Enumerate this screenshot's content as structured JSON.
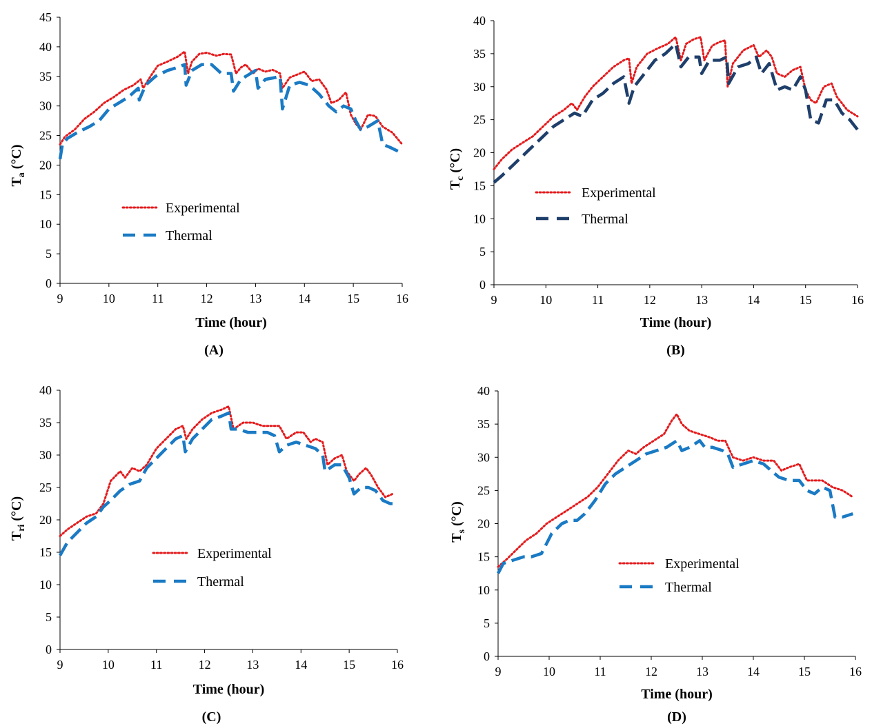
{
  "chart_data": [
    {
      "type": "line",
      "panel_label": "(A)",
      "xlabel": "Time (hour)",
      "ylabel": {
        "main": "T",
        "sub": "a",
        "unit": " (°C)"
      },
      "xlim": [
        9,
        16
      ],
      "ylim": [
        0,
        45
      ],
      "xticks": [
        9,
        10,
        11,
        12,
        13,
        14,
        15,
        16
      ],
      "yticks": [
        0,
        5,
        10,
        15,
        20,
        25,
        30,
        35,
        40,
        45
      ],
      "grid": false,
      "legend_position": "center-left",
      "series": [
        {
          "name": "Experimental",
          "color": "#e31a1c",
          "style": "dotted",
          "x": [
            9,
            9.1,
            9.3,
            9.5,
            9.7,
            9.9,
            10.1,
            10.3,
            10.5,
            10.65,
            10.7,
            10.85,
            11,
            11.2,
            11.4,
            11.55,
            11.62,
            11.7,
            11.85,
            12,
            12.2,
            12.35,
            12.5,
            12.6,
            12.7,
            12.8,
            12.95,
            13.05,
            13.2,
            13.35,
            13.5,
            13.55,
            13.7,
            13.85,
            14,
            14.15,
            14.3,
            14.45,
            14.55,
            14.7,
            14.85,
            14.95,
            15.05,
            15.15,
            15.3,
            15.45,
            15.6,
            15.8,
            16
          ],
          "y": [
            23.5,
            24.8,
            26,
            27.8,
            29,
            30.5,
            31.5,
            32.7,
            33.5,
            34.5,
            33,
            35,
            36.8,
            37.5,
            38.3,
            39.2,
            35.5,
            37.5,
            38.8,
            39,
            38.5,
            38.8,
            38.7,
            35.5,
            36.5,
            37,
            35.5,
            36.3,
            35.8,
            36.1,
            35.5,
            33,
            34.8,
            35.3,
            35.8,
            34.2,
            34.5,
            32.8,
            30.5,
            31,
            32.3,
            28.5,
            27,
            26,
            28.5,
            28.3,
            26.5,
            25.5,
            23.5
          ]
        },
        {
          "name": "Thermal",
          "color": "#1a7ac4",
          "style": "dashed",
          "x": [
            9,
            9.05,
            9.15,
            9.35,
            9.6,
            9.8,
            10,
            10.2,
            10.4,
            10.6,
            10.62,
            10.75,
            10.95,
            11.2,
            11.4,
            11.55,
            11.58,
            11.7,
            11.9,
            12.1,
            12.3,
            12.5,
            12.55,
            12.7,
            12.9,
            13.0,
            13.05,
            13.2,
            13.4,
            13.5,
            13.55,
            13.7,
            13.9,
            14.1,
            14.3,
            14.5,
            14.65,
            14.8,
            14.95,
            15.05,
            15.15,
            15.3,
            15.5,
            15.6,
            15.75,
            16
          ],
          "y": [
            21,
            23.5,
            24.5,
            25.5,
            26.5,
            27.5,
            29.5,
            30.5,
            31.5,
            33,
            31,
            33.5,
            35,
            36,
            36.5,
            37,
            33.5,
            36,
            37,
            37,
            35.5,
            35.5,
            32.5,
            34.5,
            35.5,
            36,
            33,
            34.5,
            34.8,
            35,
            29.5,
            33.5,
            34,
            33.5,
            32,
            30,
            29,
            30,
            29.5,
            27.5,
            26,
            26.5,
            27.5,
            23.5,
            23,
            22
          ]
        }
      ]
    },
    {
      "type": "line",
      "panel_label": "(B)",
      "xlabel": "Time (hour)",
      "ylabel": {
        "main": "T",
        "sub": "c",
        "unit": " (°C)"
      },
      "xlim": [
        9,
        16
      ],
      "ylim": [
        0,
        40
      ],
      "xticks": [
        9,
        10,
        11,
        12,
        13,
        14,
        15,
        16
      ],
      "yticks": [
        0,
        5,
        10,
        15,
        20,
        25,
        30,
        35,
        40
      ],
      "grid": false,
      "legend_position": "center-left",
      "series": [
        {
          "name": "Experimental",
          "color": "#e31a1c",
          "style": "dotted",
          "x": [
            9,
            9.15,
            9.35,
            9.55,
            9.75,
            9.95,
            10.15,
            10.35,
            10.5,
            10.6,
            10.75,
            10.9,
            11.1,
            11.3,
            11.5,
            11.6,
            11.65,
            11.75,
            11.95,
            12.15,
            12.35,
            12.5,
            12.6,
            12.7,
            12.85,
            12.98,
            13.05,
            13.2,
            13.35,
            13.45,
            13.5,
            13.6,
            13.8,
            14,
            14.1,
            14.25,
            14.35,
            14.45,
            14.6,
            14.75,
            14.9,
            15,
            15.1,
            15.2,
            15.35,
            15.5,
            15.6,
            15.8,
            16
          ],
          "y": [
            17.5,
            19,
            20.5,
            21.5,
            22.5,
            24,
            25.5,
            26.5,
            27.5,
            26.5,
            28.5,
            30,
            31.5,
            33,
            34,
            34.3,
            30.5,
            33,
            35,
            35.8,
            36.5,
            37.5,
            34,
            36.5,
            37.2,
            37.5,
            34,
            36.2,
            36.8,
            37,
            30,
            33.5,
            35.5,
            36.3,
            34.5,
            35.5,
            34.5,
            32,
            31.5,
            32.5,
            33,
            29.5,
            28,
            27.5,
            30,
            30.5,
            28.5,
            26.5,
            25.5
          ]
        },
        {
          "name": "Thermal",
          "color": "#1f3f6b",
          "style": "dashed",
          "x": [
            9,
            9.15,
            9.35,
            9.55,
            9.75,
            9.95,
            10.15,
            10.35,
            10.55,
            10.7,
            10.9,
            11.1,
            11.3,
            11.5,
            11.6,
            11.7,
            11.9,
            12.1,
            12.3,
            12.5,
            12.6,
            12.75,
            12.95,
            13.0,
            13.15,
            13.35,
            13.48,
            13.52,
            13.7,
            13.9,
            14.05,
            14.15,
            14.3,
            14.45,
            14.6,
            14.75,
            14.9,
            15.0,
            15.1,
            15.25,
            15.4,
            15.55,
            15.7,
            15.85,
            16
          ],
          "y": [
            15.5,
            16.5,
            18,
            19.5,
            21,
            22.5,
            24,
            25,
            26,
            25.5,
            28,
            29,
            30.5,
            31.5,
            27.5,
            30,
            32,
            34,
            35,
            36.5,
            33,
            34.5,
            34.5,
            32,
            34,
            34,
            34.5,
            30.5,
            33,
            33.5,
            34.5,
            32,
            33.5,
            29.5,
            30,
            29.5,
            31.5,
            29.5,
            25,
            24.5,
            28,
            28,
            26,
            25,
            23.5
          ]
        }
      ]
    },
    {
      "type": "line",
      "panel_label": "(C)",
      "xlabel": "Time (hour)",
      "ylabel": {
        "main": "T",
        "sub": "ri",
        "unit": " (°C)"
      },
      "xlim": [
        9,
        16
      ],
      "ylim": [
        0,
        40
      ],
      "xticks": [
        9,
        10,
        11,
        12,
        13,
        14,
        15,
        16
      ],
      "yticks": [
        0,
        5,
        10,
        15,
        20,
        25,
        30,
        35,
        40
      ],
      "grid": false,
      "legend_position": "center-left",
      "series": [
        {
          "name": "Experimental",
          "color": "#e31a1c",
          "style": "dotted",
          "x": [
            9,
            9.15,
            9.35,
            9.55,
            9.75,
            9.9,
            10.05,
            10.25,
            10.35,
            10.5,
            10.65,
            10.8,
            11.0,
            11.2,
            11.4,
            11.55,
            11.62,
            11.75,
            11.95,
            12.15,
            12.35,
            12.5,
            12.6,
            12.8,
            13.0,
            13.2,
            13.4,
            13.55,
            13.7,
            13.9,
            14.05,
            14.2,
            14.3,
            14.45,
            14.55,
            14.7,
            14.85,
            14.95,
            15.1,
            15.2,
            15.35,
            15.45,
            15.6,
            15.75,
            15.9
          ],
          "y": [
            17.5,
            18.5,
            19.5,
            20.5,
            21,
            22.5,
            26,
            27.5,
            26.5,
            28,
            27.5,
            28.5,
            31,
            32.5,
            34,
            34.5,
            32.5,
            34,
            35.5,
            36.5,
            37,
            37.5,
            34,
            35,
            35,
            34.5,
            34.5,
            34.5,
            32.5,
            33.5,
            33.5,
            32,
            32.5,
            32,
            28.5,
            29.5,
            30,
            27.5,
            26,
            27,
            28,
            27,
            25,
            23.5,
            24
          ]
        },
        {
          "name": "Thermal",
          "color": "#1a7ac4",
          "style": "dashed",
          "x": [
            9,
            9.15,
            9.35,
            9.55,
            9.75,
            9.9,
            10.05,
            10.25,
            10.45,
            10.65,
            10.8,
            11.0,
            11.2,
            11.4,
            11.55,
            11.6,
            11.75,
            11.95,
            12.15,
            12.35,
            12.5,
            12.55,
            12.7,
            12.9,
            13.1,
            13.3,
            13.45,
            13.55,
            13.7,
            13.9,
            14.1,
            14.3,
            14.45,
            14.5,
            14.7,
            14.85,
            15.0,
            15.1,
            15.25,
            15.4,
            15.55,
            15.7,
            15.85,
            15.9
          ],
          "y": [
            14.5,
            16.5,
            18,
            19.5,
            20.5,
            22,
            23,
            24.5,
            25.5,
            26,
            28,
            29.5,
            31,
            32.5,
            33,
            30.5,
            32.5,
            34,
            35.5,
            36,
            36.5,
            34,
            34,
            33.5,
            33.5,
            33.5,
            33,
            30.5,
            31.5,
            32,
            31.5,
            31,
            30,
            27.5,
            28.5,
            28.5,
            26.5,
            24,
            25,
            25,
            24.5,
            23,
            22.5,
            22.5
          ]
        }
      ]
    },
    {
      "type": "line",
      "panel_label": "(D)",
      "xlabel": "Time (hour)",
      "ylabel": {
        "main": "T",
        "sub": "s",
        "unit": " (°C)"
      },
      "xlim": [
        9,
        16
      ],
      "ylim": [
        0,
        40
      ],
      "xticks": [
        9,
        10,
        11,
        12,
        13,
        14,
        15,
        16
      ],
      "yticks": [
        0,
        5,
        10,
        15,
        20,
        25,
        30,
        35,
        40
      ],
      "grid": false,
      "legend_position": "center-right",
      "series": [
        {
          "name": "Experimental",
          "color": "#e31a1c",
          "style": "dotted",
          "x": [
            9,
            9.15,
            9.35,
            9.55,
            9.75,
            9.95,
            10.15,
            10.35,
            10.55,
            10.75,
            10.95,
            11.15,
            11.35,
            11.55,
            11.7,
            11.85,
            12.05,
            12.25,
            12.4,
            12.5,
            12.6,
            12.75,
            12.95,
            13.15,
            13.3,
            13.45,
            13.6,
            13.8,
            14.0,
            14.2,
            14.4,
            14.55,
            14.7,
            14.9,
            15.05,
            15.2,
            15.35,
            15.55,
            15.75,
            15.95
          ],
          "y": [
            13.5,
            14.5,
            16,
            17.5,
            18.5,
            20,
            21,
            22,
            23,
            24,
            25.5,
            27.5,
            29.5,
            31,
            30.5,
            31.5,
            32.5,
            33.5,
            35.5,
            36.5,
            35,
            34,
            33.5,
            33,
            32.5,
            32.5,
            30,
            29.5,
            30,
            29.5,
            29.5,
            28,
            28.5,
            29,
            26.5,
            26.5,
            26.5,
            25.5,
            25,
            24
          ]
        },
        {
          "name": "Thermal",
          "color": "#1a7ac4",
          "style": "dashed",
          "x": [
            9,
            9.1,
            9.3,
            9.5,
            9.65,
            9.85,
            10.05,
            10.25,
            10.4,
            10.55,
            10.7,
            10.9,
            11.1,
            11.3,
            11.5,
            11.7,
            11.9,
            12.1,
            12.3,
            12.5,
            12.6,
            12.75,
            12.95,
            13.05,
            13.2,
            13.4,
            13.5,
            13.6,
            13.8,
            14.0,
            14.2,
            14.35,
            14.5,
            14.7,
            14.9,
            15.05,
            15.2,
            15.35,
            15.5,
            15.6,
            15.75,
            15.95
          ],
          "y": [
            12.5,
            14,
            14.5,
            15,
            15,
            15.5,
            18.5,
            20,
            20.5,
            20.5,
            21.5,
            23.5,
            26,
            27.5,
            28.5,
            29.5,
            30.5,
            31,
            31.5,
            32.5,
            31,
            31.5,
            32.5,
            31.5,
            31.5,
            31,
            30.5,
            28.5,
            29,
            29.5,
            29,
            28,
            27,
            26.5,
            26.5,
            25,
            24.5,
            25.5,
            25,
            21,
            21,
            21.5
          ]
        }
      ]
    }
  ]
}
